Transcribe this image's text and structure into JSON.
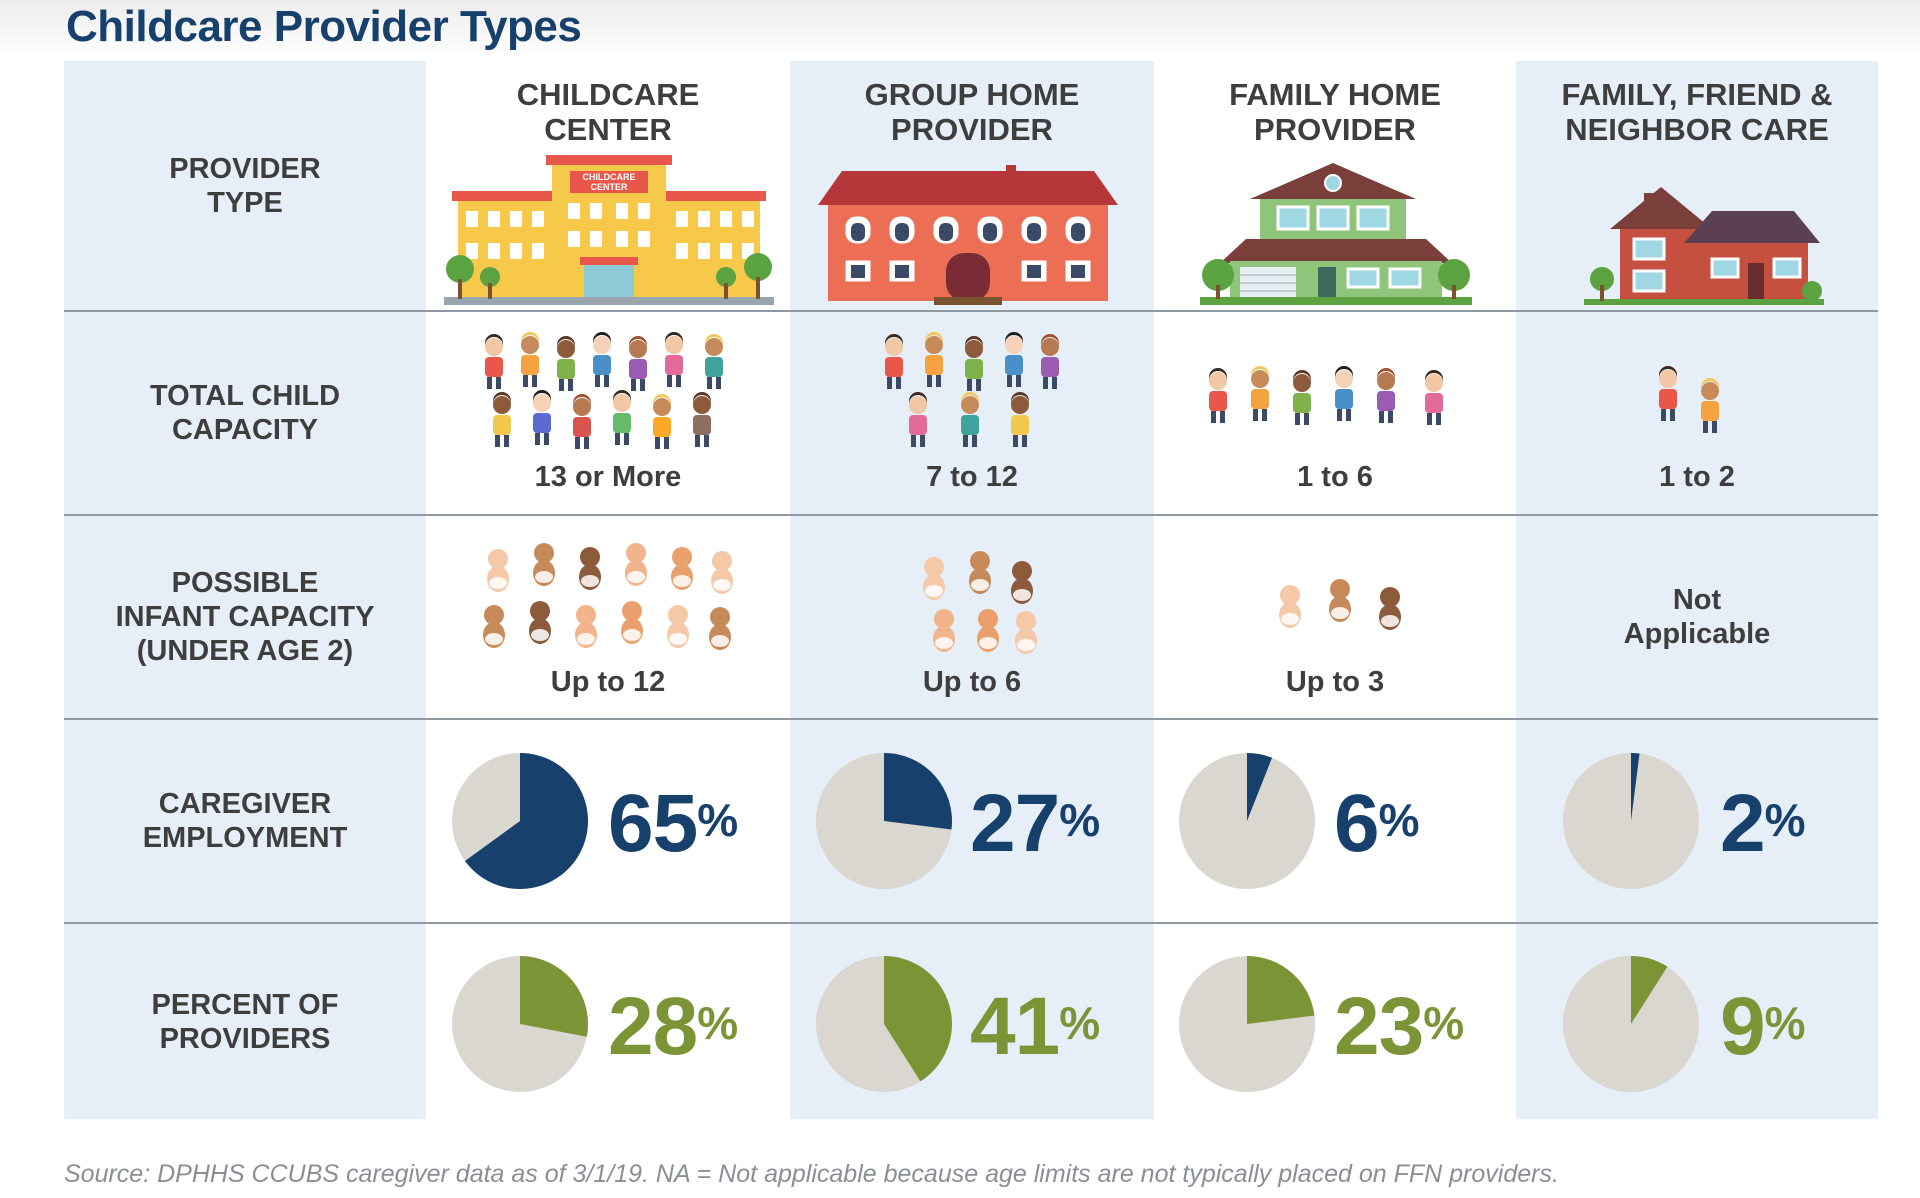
{
  "title": "Childcare Provider Types",
  "source": "Source: DPHHS CCUBS caregiver data as of 3/1/19.  NA = Not applicable because age limits are not typically placed on FFN providers.",
  "row_labels": {
    "provider_type": "PROVIDER\nTYPE",
    "total_capacity": "TOTAL CHILD\nCAPACITY",
    "infant_capacity": "POSSIBLE\nINFANT CAPACITY\n(UNDER AGE 2)",
    "caregiver_employment": "CAREGIVER\nEMPLOYMENT",
    "percent_providers": "PERCENT OF\nPROVIDERS"
  },
  "columns": [
    {
      "header": "CHILDCARE\nCENTER",
      "capacity": "13 or More",
      "infant": "Up to 12",
      "employment_label": "65",
      "providers_label": "28"
    },
    {
      "header": "GROUP HOME\nPROVIDER",
      "capacity": "7 to 12",
      "infant": "Up to 6",
      "employment_label": "27",
      "providers_label": "41"
    },
    {
      "header": "FAMILY HOME\nPROVIDER",
      "capacity": "1 to 6",
      "infant": "Up to 3",
      "employment_label": "6",
      "providers_label": "23"
    },
    {
      "header": "FAMILY, FRIEND &\nNEIGHBOR CARE",
      "capacity": "1 to 2",
      "infant": "Not\nApplicable",
      "employment_label": "2",
      "providers_label": "9"
    }
  ],
  "building_sign": "CHILDCARE\nCENTER",
  "percent_symbol": "%",
  "colors": {
    "title": "#17406d",
    "band": "#e6eff8",
    "employment": "#17406d",
    "providers": "#7b9436",
    "pie_bg": "#d9d7d0"
  },
  "chart_data": [
    {
      "type": "pie",
      "title": "CAREGIVER EMPLOYMENT",
      "categories": [
        "CHILDCARE CENTER",
        "GROUP HOME PROVIDER",
        "FAMILY HOME PROVIDER",
        "FAMILY, FRIEND & NEIGHBOR CARE"
      ],
      "values": [
        65,
        27,
        6,
        2
      ],
      "unit": "%"
    },
    {
      "type": "pie",
      "title": "PERCENT OF PROVIDERS",
      "categories": [
        "CHILDCARE CENTER",
        "GROUP HOME PROVIDER",
        "FAMILY HOME PROVIDER",
        "FAMILY, FRIEND & NEIGHBOR CARE"
      ],
      "values": [
        28,
        41,
        23,
        9
      ],
      "unit": "%"
    }
  ]
}
